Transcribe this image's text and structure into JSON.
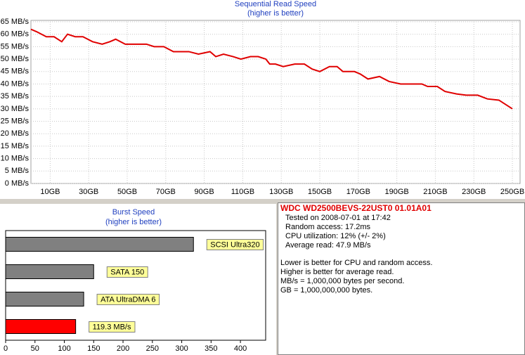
{
  "chart_data": [
    {
      "type": "line",
      "title": "Sequential Read Speed",
      "subtitle": "(higher is better)",
      "x": [
        0,
        3,
        8,
        12,
        16,
        19,
        23,
        27,
        32,
        37,
        41,
        44,
        49,
        54,
        60,
        64,
        69,
        74,
        82,
        87,
        93,
        96,
        100,
        105,
        109,
        114,
        118,
        122,
        124,
        127,
        131,
        137,
        142,
        146,
        150,
        155,
        159,
        162,
        168,
        171,
        175,
        181,
        186,
        192,
        197,
        203,
        206,
        211,
        215,
        221,
        226,
        232,
        237,
        243,
        250
      ],
      "series": [
        {
          "color": "#e00000",
          "values": [
            62,
            61,
            59,
            59,
            57,
            60,
            59,
            59,
            57,
            56,
            57,
            58,
            56,
            56,
            56,
            55,
            55,
            53,
            53,
            52,
            53,
            51,
            52,
            51,
            50,
            51,
            51,
            50,
            48,
            48,
            47,
            48,
            48,
            46,
            45,
            47,
            47,
            45,
            45,
            44,
            42,
            43,
            41,
            40,
            40,
            40,
            39,
            39,
            37,
            36,
            35.5,
            35.5,
            34,
            33.5,
            30
          ]
        }
      ],
      "xlim": [
        0,
        254
      ],
      "xticks": [
        {
          "value": 10,
          "label": "10GB"
        },
        {
          "value": 30,
          "label": "30GB"
        },
        {
          "value": 50,
          "label": "50GB"
        },
        {
          "value": 70,
          "label": "70GB"
        },
        {
          "value": 90,
          "label": "90GB"
        },
        {
          "value": 110,
          "label": "110GB"
        },
        {
          "value": 130,
          "label": "130GB"
        },
        {
          "value": 150,
          "label": "150GB"
        },
        {
          "value": 170,
          "label": "170GB"
        },
        {
          "value": 190,
          "label": "190GB"
        },
        {
          "value": 210,
          "label": "210GB"
        },
        {
          "value": 230,
          "label": "230GB"
        },
        {
          "value": 250,
          "label": "250GB"
        }
      ],
      "ylim": [
        0,
        65
      ],
      "yticks": [
        {
          "value": 0,
          "label": "0 MB/s"
        },
        {
          "value": 5,
          "label": "5 MB/s"
        },
        {
          "value": 10,
          "label": "10 MB/s"
        },
        {
          "value": 15,
          "label": "15 MB/s"
        },
        {
          "value": 20,
          "label": "20 MB/s"
        },
        {
          "value": 25,
          "label": "25 MB/s"
        },
        {
          "value": 30,
          "label": "30 MB/s"
        },
        {
          "value": 35,
          "label": "35 MB/s"
        },
        {
          "value": 40,
          "label": "40 MB/s"
        },
        {
          "value": 45,
          "label": "45 MB/s"
        },
        {
          "value": 50,
          "label": "50 MB/s"
        },
        {
          "value": 55,
          "label": "55 MB/s"
        },
        {
          "value": 60,
          "label": "60 MB/s"
        },
        {
          "value": 65,
          "label": "65 MB/s"
        }
      ],
      "grid": true
    },
    {
      "type": "bar",
      "orientation": "horizontal",
      "title": "Burst Speed",
      "subtitle": "(higher is better)",
      "categories": [
        "SCSI Ultra320",
        "SATA 150",
        "ATA UltraDMA 6",
        null
      ],
      "values": [
        320,
        150,
        133,
        119.3
      ],
      "value_labels": [
        null,
        null,
        null,
        "119.3 MB/s"
      ],
      "colors": [
        "#808080",
        "#808080",
        "#808080",
        "#ff0000"
      ],
      "label_color": "#ffff99",
      "xlim": [
        0,
        443
      ],
      "xticks": [
        0,
        50,
        100,
        150,
        200,
        250,
        300,
        350,
        400
      ]
    }
  ],
  "info": {
    "title": "WDC WD2500BEVS-22UST0 01.01A01",
    "details": [
      "Tested on 2008-07-01 at 17:42",
      "Random access: 17.2ms",
      "CPU utilization: 12% (+/- 2%)",
      "Average read: 47.9 MB/s"
    ],
    "notes": [
      "Lower is better for CPU and random access.",
      "Higher is better for average read.",
      "MB/s = 1,000,000 bytes per second.",
      "GB = 1,000,000,000 bytes."
    ]
  }
}
